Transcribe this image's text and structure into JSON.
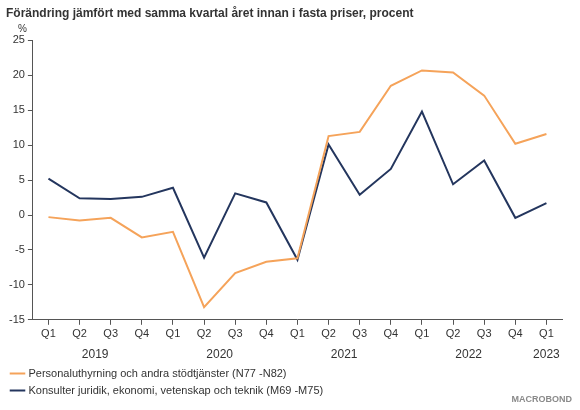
{
  "chart_data": {
    "type": "line",
    "title": "Förändring jämfört med samma kvartal året innan i fasta priser, procent",
    "ylabel": "%",
    "categories": [
      "Q1",
      "Q2",
      "Q3",
      "Q4",
      "Q1",
      "Q2",
      "Q3",
      "Q4",
      "Q1",
      "Q2",
      "Q3",
      "Q4",
      "Q1",
      "Q2",
      "Q3",
      "Q4",
      "Q1"
    ],
    "years": [
      "2019",
      "2019",
      "2019",
      "2019",
      "2020",
      "2020",
      "2020",
      "2020",
      "2021",
      "2021",
      "2021",
      "2021",
      "2022",
      "2022",
      "2022",
      "2022",
      "2023"
    ],
    "series": [
      {
        "name": "Personaluthyrning och andra stödtjänster (N77 -N82)",
        "color": "#f5a35a",
        "values": [
          -0.3,
          -0.8,
          -0.4,
          -3.2,
          -2.4,
          -13.2,
          -8.3,
          -6.7,
          -6.2,
          11.3,
          11.9,
          18.5,
          20.7,
          20.4,
          17.1,
          10.2,
          11.6
        ]
      },
      {
        "name": "Konsulter juridik, ekonomi, vetenskap och teknik (M69 -M75)",
        "color": "#24365e",
        "values": [
          5.2,
          2.4,
          2.3,
          2.6,
          3.9,
          -6.1,
          3.1,
          1.8,
          -6.4,
          10.1,
          2.9,
          6.6,
          14.8,
          4.4,
          7.8,
          -0.4,
          1.7
        ]
      }
    ],
    "ylim": [
      -15,
      25
    ],
    "yticks": [
      -15,
      -10,
      -5,
      0,
      5,
      10,
      15,
      20,
      25
    ],
    "grid": false,
    "legend": "bottom",
    "logo": "MACROBOND"
  }
}
